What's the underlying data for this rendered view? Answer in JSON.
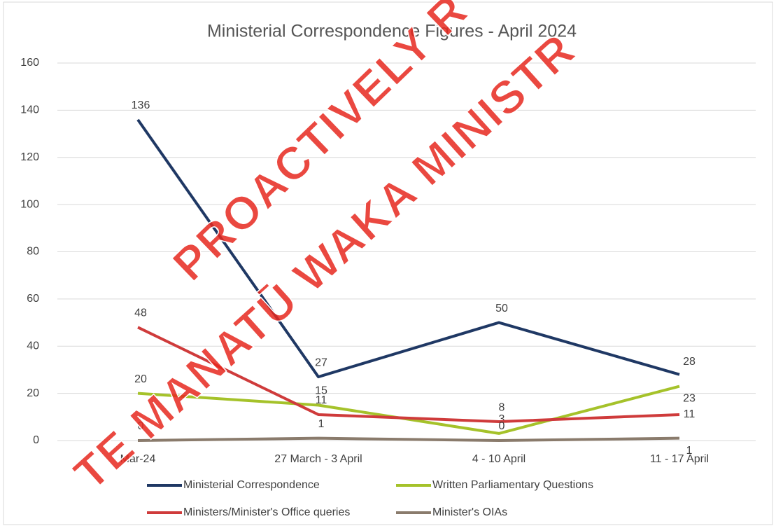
{
  "chart_data": {
    "type": "line",
    "title": "Ministerial Correspondence Figures - April 2024",
    "categories": [
      "Mar-24",
      "27 March - 3 April",
      "4 - 10 April",
      "11 - 17 April"
    ],
    "series": [
      {
        "name": "Ministerial Correspondence",
        "color": "#1f3864",
        "values": [
          136,
          27,
          50,
          28
        ]
      },
      {
        "name": "Written Parliamentary Questions",
        "color": "#a5c22a",
        "values": [
          20,
          15,
          3,
          23
        ]
      },
      {
        "name": "Ministers/Minister's Office queries",
        "color": "#cf3b3b",
        "values": [
          48,
          11,
          8,
          11
        ]
      },
      {
        "name": "Minister's OIAs",
        "color": "#8a7b6c",
        "values": [
          0,
          1,
          0,
          1
        ]
      }
    ],
    "ylim": [
      0,
      160
    ],
    "yticks": [
      0,
      20,
      40,
      60,
      80,
      100,
      120,
      140,
      160
    ],
    "grid": true,
    "annotations": [
      "PROACTIVELY R",
      "TE MANATŪ WAKA MINISTR"
    ]
  }
}
